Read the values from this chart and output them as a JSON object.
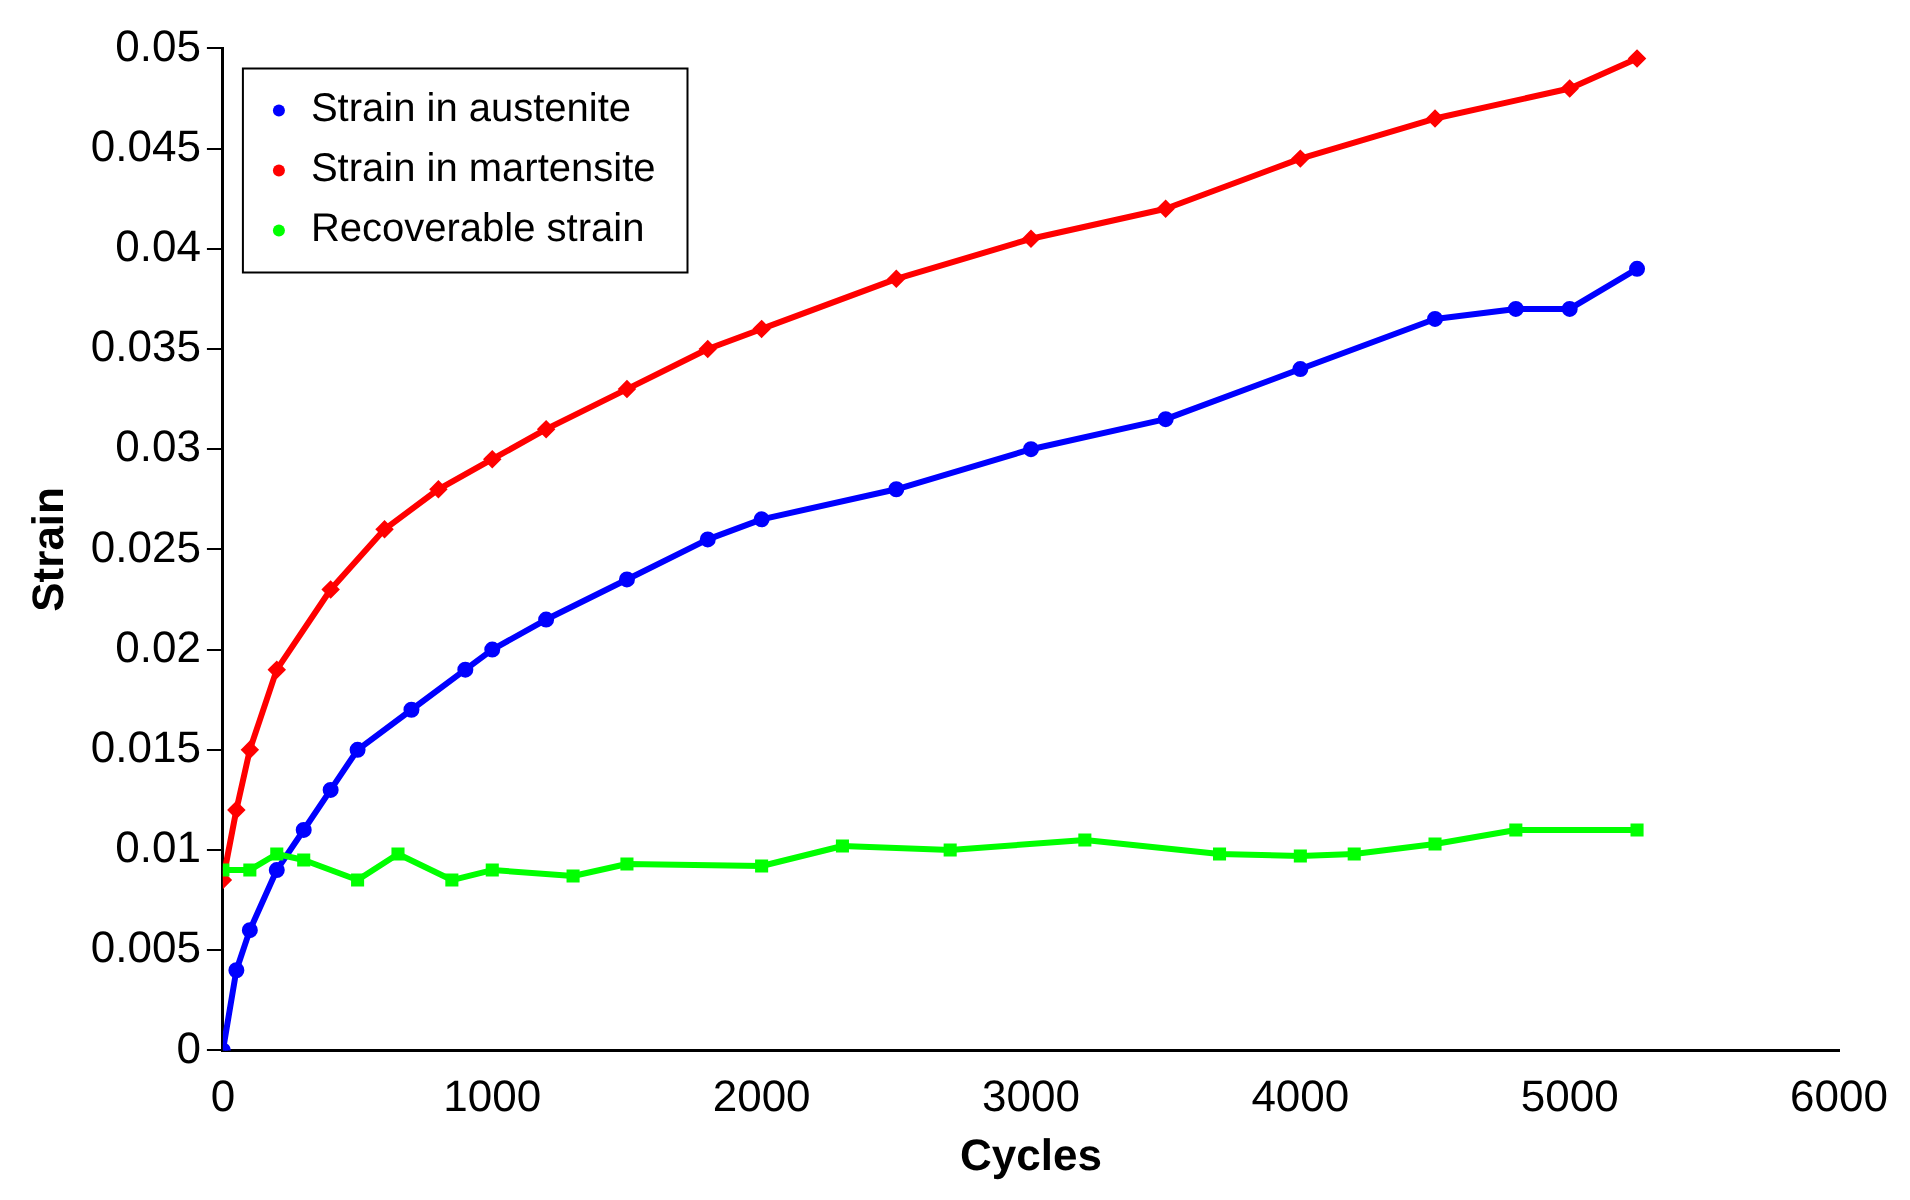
{
  "chart_data": {
    "type": "line",
    "xlabel": "Cycles",
    "ylabel": "Strain",
    "xlim": [
      0,
      6000
    ],
    "xticks": [
      0,
      1000,
      2000,
      3000,
      4000,
      5000,
      6000
    ],
    "ylim": [
      0,
      0.05
    ],
    "yticks": [
      0,
      0.005,
      0.01,
      0.015,
      0.02,
      0.025,
      0.03,
      0.035,
      0.04,
      0.045,
      0.05
    ],
    "grid": false,
    "legend": "top left",
    "line_style": "solid",
    "series": [
      {
        "name": "Strain in austenite",
        "color": "#0000ff",
        "marker": "circle",
        "x": [
          0,
          50,
          100,
          200,
          300,
          400,
          500,
          700,
          900,
          1000,
          1200,
          1500,
          1800,
          2000,
          2500,
          3000,
          3500,
          4000,
          4500,
          4800,
          5000,
          5250
        ],
        "values": [
          0,
          0.004,
          0.006,
          0.009,
          0.011,
          0.013,
          0.015,
          0.017,
          0.019,
          0.02,
          0.0215,
          0.0235,
          0.0255,
          0.0265,
          0.028,
          0.03,
          0.0315,
          0.034,
          0.0365,
          0.037,
          0.037,
          0.039
        ]
      },
      {
        "name": "Strain in martensite",
        "color": "#ff0000",
        "marker": "diamond",
        "x": [
          0,
          50,
          100,
          200,
          400,
          600,
          800,
          1000,
          1200,
          1500,
          1800,
          2000,
          2500,
          3000,
          3500,
          4000,
          4500,
          5000,
          5250
        ],
        "values": [
          0.0085,
          0.012,
          0.015,
          0.019,
          0.023,
          0.026,
          0.028,
          0.0295,
          0.031,
          0.033,
          0.035,
          0.036,
          0.0385,
          0.0405,
          0.042,
          0.0445,
          0.0465,
          0.048,
          0.0495
        ]
      },
      {
        "name": "Recoverable strain",
        "color": "#00ff00",
        "marker": "square",
        "x": [
          0,
          100,
          200,
          300,
          500,
          650,
          850,
          1000,
          1300,
          1500,
          2000,
          2300,
          2700,
          3200,
          3700,
          4000,
          4200,
          4500,
          4800,
          5250
        ],
        "values": [
          0.009,
          0.009,
          0.0098,
          0.0095,
          0.0085,
          0.0098,
          0.0085,
          0.009,
          0.0087,
          0.0093,
          0.0092,
          0.0102,
          0.01,
          0.0105,
          0.0098,
          0.0097,
          0.0098,
          0.0103,
          0.011,
          0.011
        ]
      }
    ]
  }
}
